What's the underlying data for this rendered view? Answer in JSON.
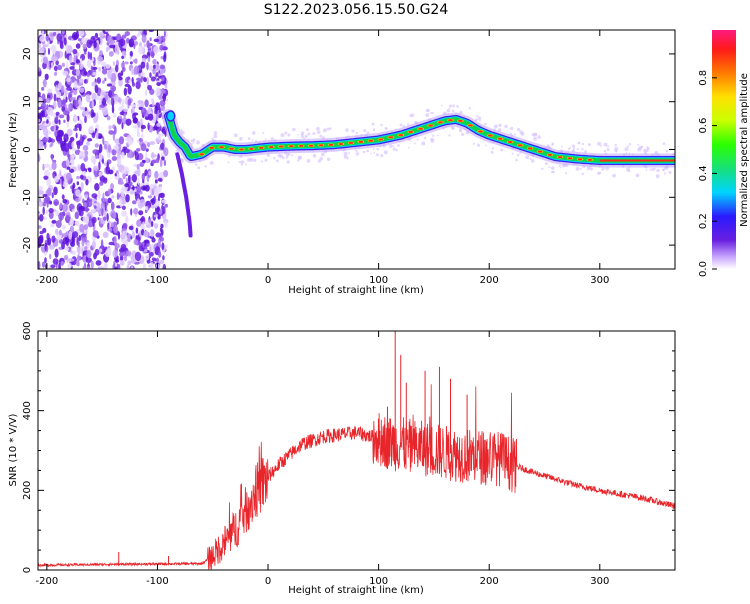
{
  "title": "S122.2023.056.15.50.G24",
  "colors": {
    "snr_line": "#e8252a",
    "spectrum_noise": "#6a1fe0",
    "spectrum_ridge_core": "#ff2a1a",
    "spectrum_ridge_edge": "#12d24a"
  },
  "chart_data": [
    {
      "type": "heatmap",
      "xlabel": "Height of straight line (km)",
      "ylabel": "Frequency (Hz)",
      "xlim": [
        -208,
        368
      ],
      "ylim": [
        -25,
        25
      ],
      "xticks": [
        -200,
        -100,
        0,
        100,
        200,
        300
      ],
      "yticks": [
        -20,
        -10,
        0,
        10,
        20
      ],
      "colorbar": {
        "label": "Normalized spectral amplitude",
        "range": [
          0,
          1
        ],
        "ticks": [
          "0.0",
          "0.2",
          "0.4",
          "0.6",
          "0.8"
        ],
        "colormap": [
          "#ffffff",
          "#c9a7ff",
          "#6a1fe0",
          "#2a1aff",
          "#00d4ff",
          "#18e07a",
          "#2aff00",
          "#c8ff00",
          "#ffe000",
          "#ff7a00",
          "#ff1a1a",
          "#ff1a80"
        ]
      },
      "ridge": {
        "x": [
          -90,
          -85,
          -80,
          -75,
          -70,
          -60,
          -50,
          -40,
          -30,
          -20,
          0,
          20,
          40,
          60,
          80,
          100,
          120,
          140,
          160,
          170,
          180,
          190,
          200,
          220,
          240,
          260,
          280,
          300,
          330,
          368
        ],
        "y": [
          7,
          3,
          1.5,
          0.5,
          -1.5,
          -1,
          0.5,
          0.5,
          0,
          0,
          0.5,
          0.7,
          0.8,
          1,
          1.5,
          2,
          3,
          4.5,
          6,
          6.3,
          5.5,
          4,
          3,
          1.5,
          0,
          -1.5,
          -2,
          -2.3,
          -2.3,
          -2.3
        ]
      },
      "branch": {
        "x": [
          -82,
          -78,
          -74,
          -71,
          -70
        ],
        "y": [
          -1,
          -5,
          -10,
          -15,
          -18
        ]
      },
      "noise_region_x": [
        -208,
        -92
      ]
    },
    {
      "type": "line",
      "xlabel": "Height of straight line (km)",
      "ylabel": "SNR (10 * V/V)",
      "xlim": [
        -208,
        368
      ],
      "ylim": [
        0,
        600
      ],
      "xticks": [
        -200,
        -100,
        0,
        100,
        200,
        300
      ],
      "yticks": [
        0,
        200,
        400,
        600
      ],
      "envelope": {
        "x": [
          -208,
          -150,
          -60,
          -50,
          -30,
          -10,
          10,
          30,
          50,
          80,
          100,
          110,
          130,
          150,
          170,
          190,
          210,
          220,
          240,
          260,
          280,
          300,
          320,
          340,
          368
        ],
        "y": [
          12,
          14,
          16,
          35,
          100,
          200,
          265,
          315,
          335,
          345,
          330,
          320,
          310,
          300,
          290,
          285,
          280,
          265,
          245,
          228,
          212,
          200,
          190,
          180,
          160
        ]
      },
      "spikes": [
        {
          "x": -135,
          "y": 45
        },
        {
          "x": -90,
          "y": 35
        },
        {
          "x": 115,
          "y": 600
        },
        {
          "x": 120,
          "y": 540
        },
        {
          "x": 142,
          "y": 500
        },
        {
          "x": 155,
          "y": 510
        },
        {
          "x": 165,
          "y": 480
        },
        {
          "x": 125,
          "y": 470
        },
        {
          "x": 108,
          "y": 410
        },
        {
          "x": 180,
          "y": 440
        }
      ]
    }
  ]
}
